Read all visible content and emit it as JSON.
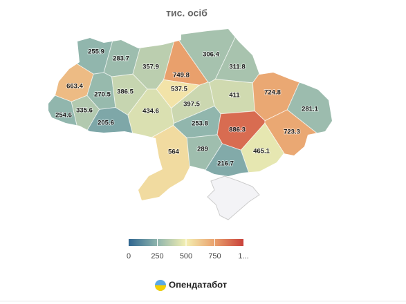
{
  "chart_data": {
    "type": "choropleth",
    "title": "тис. осіб",
    "values": [
      255.9,
      283.7,
      357.9,
      749.8,
      306.4,
      311.8,
      663.4,
      270.5,
      386.5,
      537.5,
      411,
      724.8,
      281.1,
      254.6,
      335.6,
      434.6,
      397.5,
      205.6,
      253.8,
      886.3,
      723.3,
      564,
      289,
      465.1,
      216.7
    ],
    "colorbar": {
      "lim": [
        0,
        1000
      ],
      "ticks": [
        0,
        250,
        500,
        750,
        {
          "value": 1000,
          "label": "1..."
        }
      ],
      "colors": [
        "#2f6690",
        "#8fb5ad",
        "#f4efb2",
        "#e9a06c",
        "#c9413a"
      ]
    }
  },
  "footer": {
    "logo_text": "Опендатабот"
  }
}
